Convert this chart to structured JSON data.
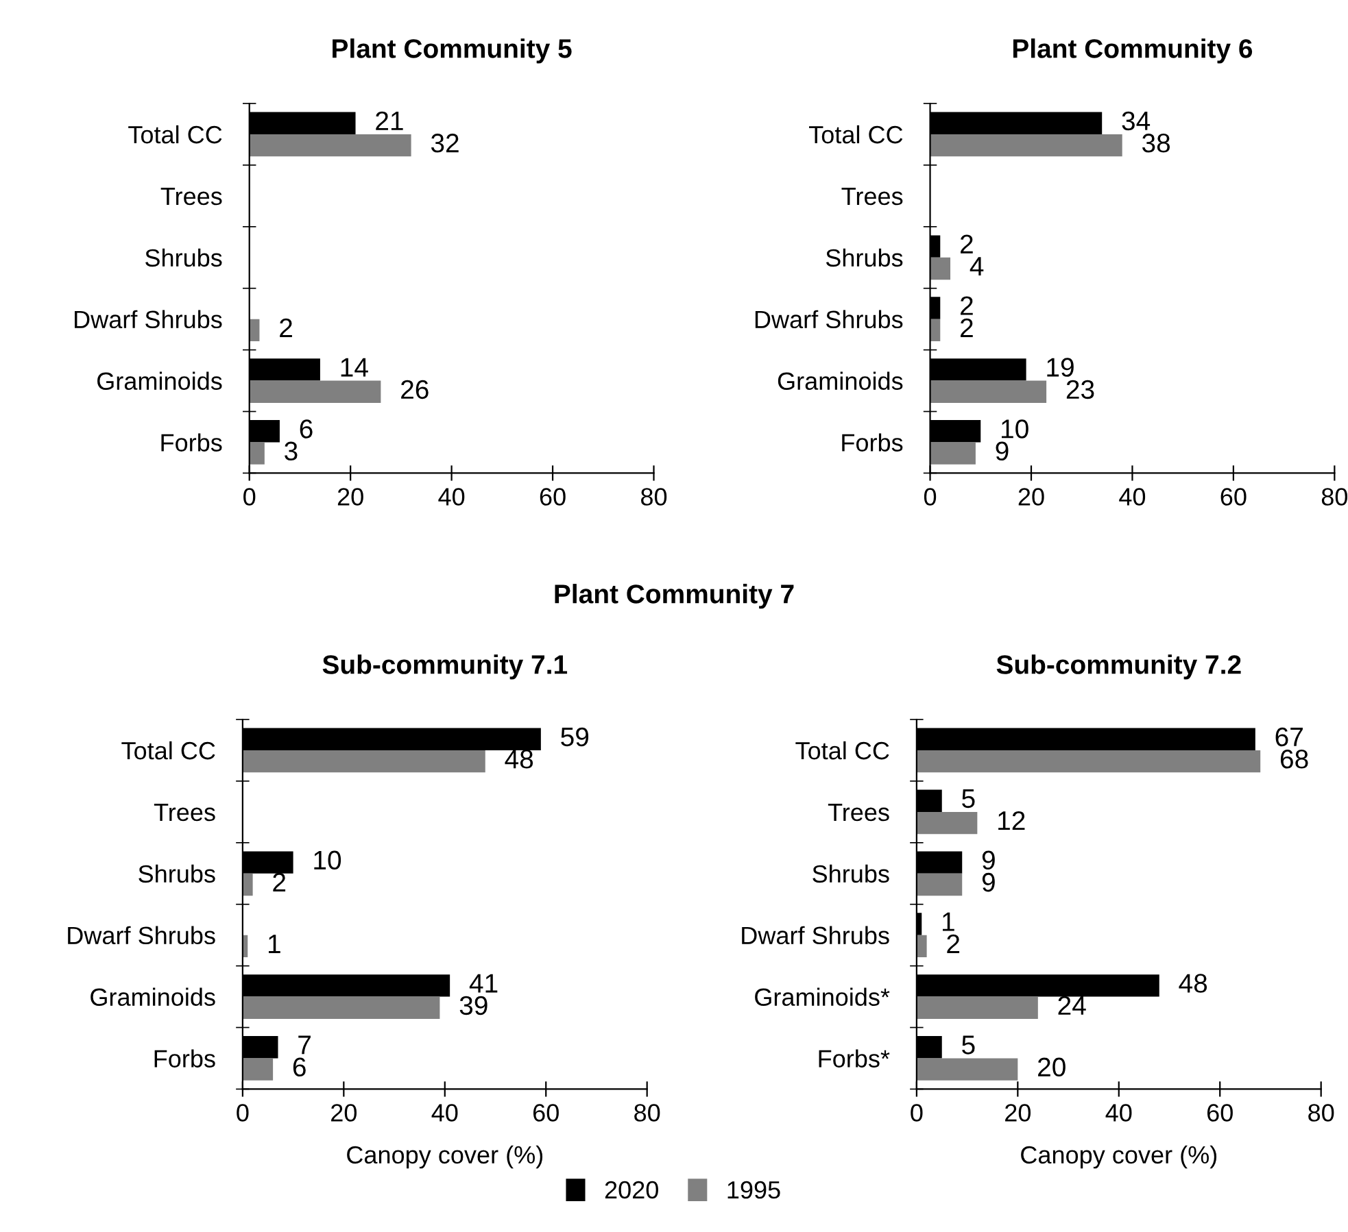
{
  "chart_data": [
    {
      "type": "bar",
      "orientation": "horizontal",
      "title": "Plant Community 5",
      "categories": [
        "Total CC",
        "Trees",
        "Shrubs",
        "Dwarf Shrubs",
        "Graminoids",
        "Forbs"
      ],
      "xlim": [
        0,
        80
      ],
      "xticks": [
        0,
        20,
        40,
        60,
        80
      ],
      "grid": false,
      "legend": false,
      "series": [
        {
          "color": "#000000",
          "values": [
            21,
            null,
            0,
            0,
            14,
            6
          ],
          "value_labels": [
            "21",
            null,
            null,
            null,
            "14",
            "6"
          ]
        },
        {
          "color": "#808080",
          "values": [
            32,
            0,
            0,
            2,
            26,
            3
          ],
          "value_labels": [
            "32",
            null,
            null,
            "2",
            "26",
            "3"
          ]
        }
      ]
    },
    {
      "type": "bar",
      "orientation": "horizontal",
      "title": "Plant Community 6",
      "categories": [
        "Total CC",
        "Trees",
        "Shrubs",
        "Dwarf Shrubs",
        "Graminoids",
        "Forbs"
      ],
      "xlim": [
        0,
        80
      ],
      "xticks": [
        0,
        20,
        40,
        60,
        80
      ],
      "grid": false,
      "legend": false,
      "series": [
        {
          "color": "#000000",
          "values": [
            34,
            0,
            2,
            2,
            19,
            10
          ],
          "value_labels": [
            "34",
            null,
            "2",
            "2",
            "19",
            "10"
          ]
        },
        {
          "color": "#808080",
          "values": [
            38,
            0,
            4,
            2,
            23,
            9
          ],
          "value_labels": [
            "38",
            null,
            "4",
            "2",
            "23",
            "9"
          ]
        }
      ]
    },
    {
      "type": "bar",
      "orientation": "horizontal",
      "title": "Sub-community 7.1",
      "annotations": [
        "Plant Community 7"
      ],
      "xlabel": "Canopy cover (%)",
      "categories": [
        "Total CC",
        "Trees",
        "Shrubs",
        "Dwarf Shrubs",
        "Graminoids",
        "Forbs"
      ],
      "xlim": [
        0,
        80
      ],
      "xticks": [
        0,
        20,
        40,
        60,
        80
      ],
      "grid": false,
      "legend": false,
      "series": [
        {
          "color": "#000000",
          "values": [
            59,
            0,
            10,
            null,
            41,
            7
          ],
          "value_labels": [
            "59",
            null,
            "10",
            null,
            "41",
            "7"
          ]
        },
        {
          "color": "#808080",
          "values": [
            48,
            0,
            2,
            1,
            39,
            6
          ],
          "value_labels": [
            "48",
            null,
            "2",
            "1",
            "39",
            "6"
          ]
        }
      ]
    },
    {
      "type": "bar",
      "orientation": "horizontal",
      "title": "Sub-community 7.2",
      "xlabel": "Canopy cover (%)",
      "categories": [
        "Total CC",
        "Trees",
        "Shrubs",
        "Dwarf Shrubs",
        "Graminoids*",
        "Forbs*"
      ],
      "xlim": [
        0,
        80
      ],
      "xticks": [
        0,
        20,
        40,
        60,
        80
      ],
      "grid": false,
      "legend": "bottom",
      "series": [
        {
          "name": "2020",
          "color": "#000000",
          "values": [
            67,
            5,
            9,
            1,
            48,
            5
          ],
          "value_labels": [
            "67",
            "5",
            "9",
            "1",
            "48",
            "5"
          ]
        },
        {
          "name": "1995",
          "color": "#808080",
          "values": [
            68,
            12,
            9,
            2,
            24,
            20
          ],
          "value_labels": [
            "68",
            "12",
            "9",
            "2",
            "24",
            "20"
          ]
        }
      ]
    }
  ]
}
